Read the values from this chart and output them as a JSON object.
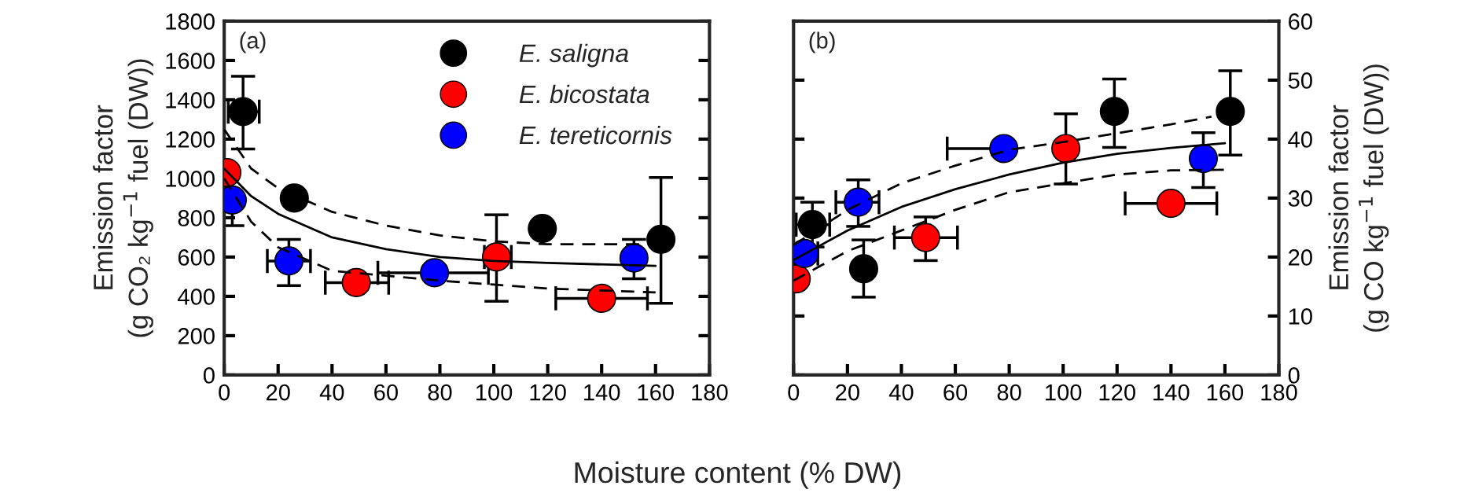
{
  "chart_data": [
    {
      "type": "scatter",
      "ylabel": "Emission factor\n(g CO₂ kg$^{−1}$ fuel (DW))",
      "xlabel": "Moisture content (% DW)",
      "xlim": [
        0,
        180
      ],
      "xticks": [
        0,
        20,
        40,
        60,
        80,
        100,
        120,
        140,
        160,
        180
      ],
      "ylim": [
        0,
        1800
      ],
      "yticks": [
        0,
        200,
        400,
        600,
        800,
        1000,
        1200,
        1400,
        1600,
        1800
      ],
      "legend": "top right",
      "annotations": [
        "(a)"
      ],
      "series": [
        {
          "name": "E. saligna",
          "color": "#000000",
          "marker": "circle",
          "x": [
            7,
            26,
            118,
            162
          ],
          "values": [
            1340,
            900,
            745,
            690
          ],
          "errors": [
            [
              1150,
              1520
            ],
            null,
            null,
            [
              365,
              1005
            ]
          ],
          "xerrors": [
            [
              1.5,
              13
            ],
            null,
            null,
            null
          ]
        },
        {
          "name": "E. bicostata",
          "color": "#ff0000",
          "marker": "circle",
          "x": [
            1,
            49,
            101,
            140
          ],
          "values": [
            1030,
            470,
            600,
            390
          ],
          "errors": [
            null,
            null,
            [
              375,
              815
            ],
            null
          ],
          "xerrors": [
            null,
            [
              37.5,
              61
            ],
            [
              96.5,
              106.5
            ],
            [
              123,
              157
            ]
          ]
        },
        {
          "name": "E. tereticornis",
          "color": "#0000ff",
          "marker": "circle",
          "x": [
            3,
            24,
            78,
            152
          ],
          "values": [
            890,
            580,
            520,
            595
          ],
          "errors": [
            [
              760,
              890
            ],
            [
              455,
              690
            ],
            null,
            [
              490,
              690
            ]
          ],
          "xerrors": [
            null,
            [
              16,
              32
            ],
            [
              57,
              98
            ],
            null
          ]
        },
        {
          "type": "line",
          "color": "#000000",
          "line_style": "solid",
          "x": [
            0,
            10,
            20,
            40,
            60,
            80,
            100,
            120,
            160
          ],
          "values": [
            1050,
            910,
            820,
            700,
            640,
            600,
            580,
            570,
            555
          ]
        },
        {
          "type": "line",
          "color": "#000000",
          "line_style": "dashed",
          "x": [
            0,
            10,
            20,
            40,
            60,
            80,
            100,
            120,
            154
          ],
          "values": [
            1250,
            1050,
            950,
            830,
            760,
            710,
            680,
            665,
            665
          ]
        },
        {
          "type": "line",
          "color": "#000000",
          "line_style": "dashed",
          "x": [
            0,
            10,
            20,
            40,
            60,
            80,
            100,
            120,
            160
          ],
          "values": [
            1000,
            780,
            650,
            530,
            505,
            480,
            460,
            440,
            420
          ]
        }
      ]
    },
    {
      "type": "scatter",
      "y2label": "Emission factor\n(g CO kg$^{−1}$ fuel (DW))",
      "xlim": [
        0,
        180
      ],
      "xticks": [
        0,
        20,
        40,
        60,
        80,
        100,
        120,
        140,
        160,
        180
      ],
      "y2lim": [
        0,
        60
      ],
      "y2ticks": [
        0,
        10,
        20,
        30,
        40,
        50,
        60
      ],
      "annotations": [
        "(b)"
      ],
      "series": [
        {
          "color": "#000000",
          "marker": "circle",
          "axis": "y2",
          "x": [
            7,
            26,
            119,
            162
          ],
          "values": [
            25.5,
            18,
            44.7,
            44.7
          ],
          "errors": [
            [
              21.7,
              29.3
            ],
            [
              13.2,
              22.9
            ],
            [
              38.6,
              50.2
            ],
            [
              37.3,
              51.6
            ]
          ],
          "xerrors": [
            [
              1,
              13.4
            ],
            null,
            null,
            null
          ]
        },
        {
          "color": "#ff0000",
          "marker": "circle",
          "axis": "y2",
          "x": [
            1,
            49,
            101,
            140
          ],
          "values": [
            16.3,
            23.3,
            38.4,
            29.1
          ],
          "errors": [
            null,
            [
              19.4,
              26.8
            ],
            [
              32.4,
              44.3
            ],
            null
          ],
          "xerrors": [
            null,
            [
              37.4,
              60.8
            ],
            null,
            [
              123,
              157
            ]
          ]
        },
        {
          "color": "#0000ff",
          "marker": "circle",
          "axis": "y2",
          "x": [
            4,
            24,
            78,
            152
          ],
          "values": [
            20.6,
            29.3,
            38.4,
            36.7
          ],
          "errors": [
            null,
            [
              25.2,
              33.1
            ],
            null,
            [
              31.8,
              41.1
            ]
          ],
          "xerrors": [
            [
              0,
              9
            ],
            [
              15.7,
              31.7
            ],
            [
              57,
              78
            ],
            null
          ]
        },
        {
          "type": "line",
          "color": "#000000",
          "line_style": "solid",
          "axis": "y2",
          "x": [
            0,
            20,
            40,
            60,
            80,
            100,
            120,
            140,
            160
          ],
          "values": [
            19.5,
            24.5,
            28.5,
            31.5,
            34,
            36,
            37.5,
            38.5,
            39.3
          ]
        },
        {
          "type": "line",
          "color": "#000000",
          "line_style": "dashed",
          "axis": "y2",
          "x": [
            0,
            20,
            40,
            60,
            80,
            100,
            120,
            140,
            155
          ],
          "values": [
            22,
            28,
            32.5,
            35.5,
            38.2,
            39.5,
            41,
            42.5,
            43.8
          ]
        },
        {
          "type": "line",
          "color": "#000000",
          "line_style": "dashed",
          "axis": "y2",
          "x": [
            0,
            20,
            40,
            60,
            80,
            100,
            120,
            140,
            160
          ],
          "values": [
            16,
            21,
            24.5,
            28,
            31,
            32.5,
            34,
            34.7,
            34.8
          ]
        }
      ]
    }
  ]
}
